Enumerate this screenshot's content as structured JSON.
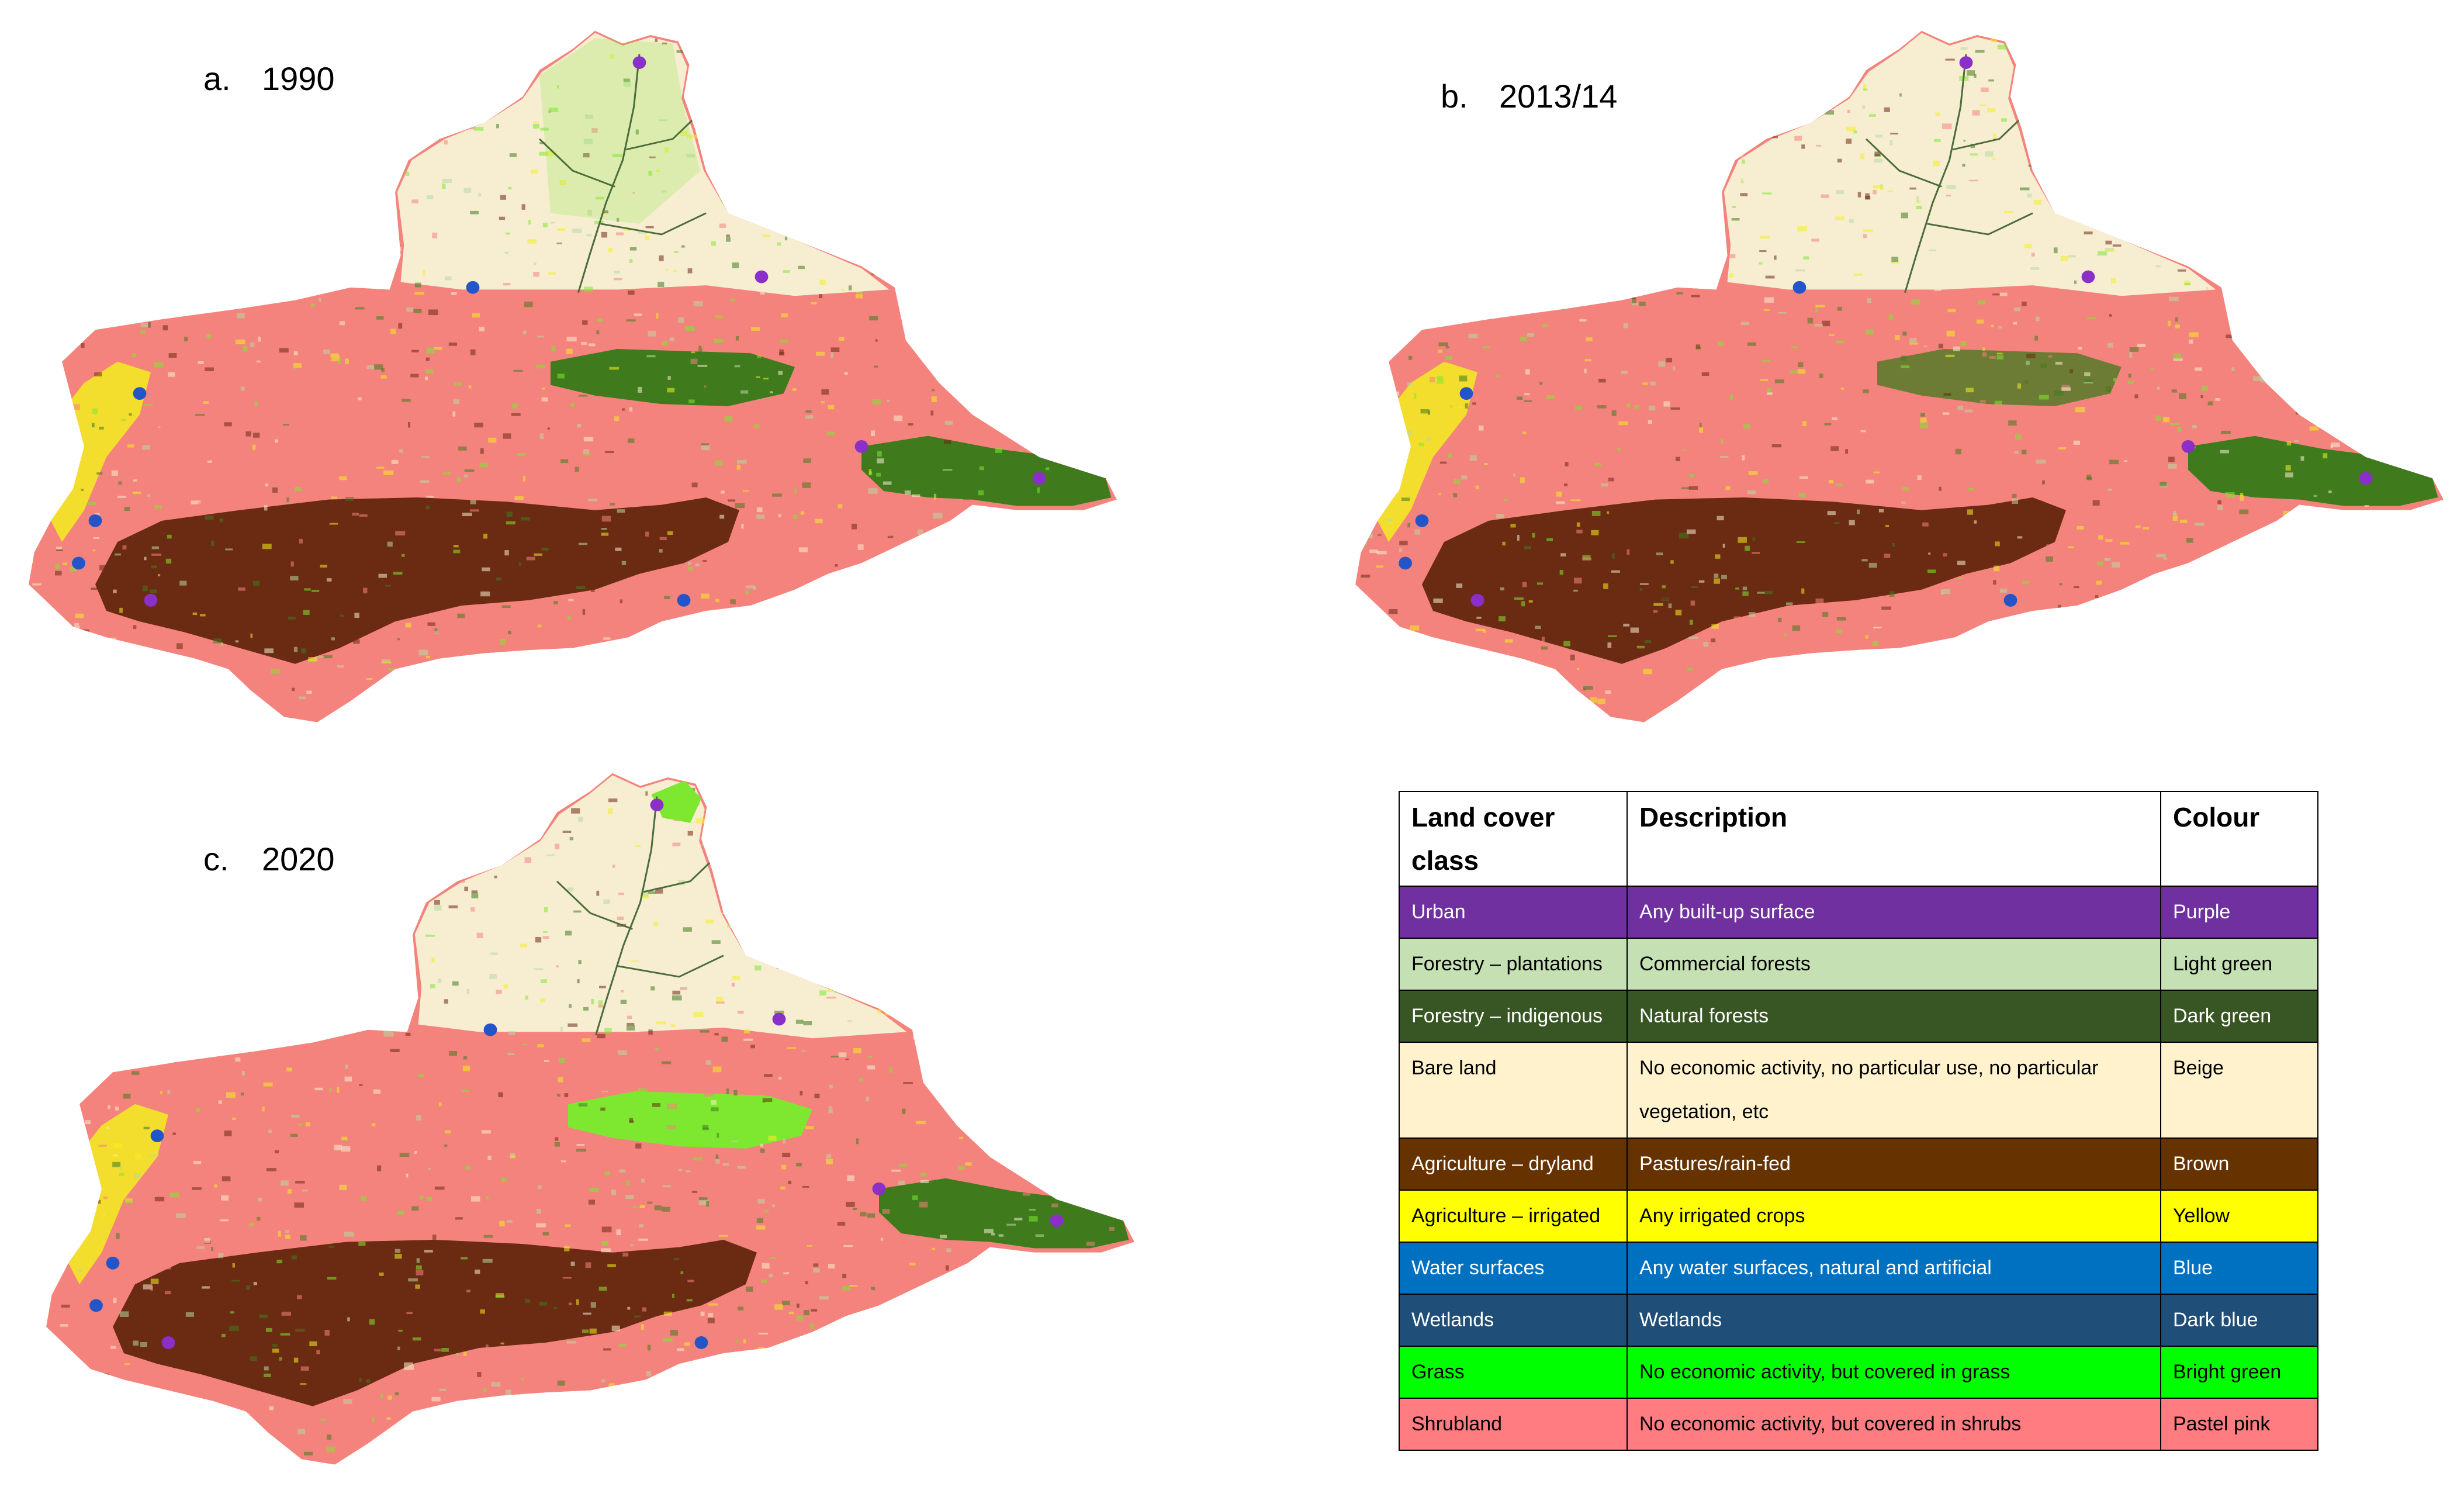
{
  "panels": [
    {
      "letter": "a.",
      "year": "1990"
    },
    {
      "letter": "b.",
      "year": "2013/14"
    },
    {
      "letter": "c.",
      "year": "2020"
    }
  ],
  "legend": {
    "headers": [
      "Land cover class",
      "Description",
      "Colour"
    ],
    "rows": [
      {
        "cls": "Urban",
        "desc": "Any built-up surface",
        "colour": "Purple",
        "fill": "#7030a0",
        "text": "#ffffff"
      },
      {
        "cls": "Forestry – plantations",
        "desc": "Commercial forests",
        "colour": "Light green",
        "fill": "#c5e0b3",
        "text": "#000000"
      },
      {
        "cls": "Forestry – indigenous",
        "desc": "Natural forests",
        "colour": "Dark green",
        "fill": "#375623",
        "text": "#ffffff"
      },
      {
        "cls": "Bare land",
        "desc": "No economic activity, no particular use, no particular vegetation, etc",
        "colour": "Beige",
        "fill": "#fff2cc",
        "text": "#000000"
      },
      {
        "cls": "Agriculture – dryland",
        "desc": "Pastures/rain-fed",
        "colour": "Brown",
        "fill": "#663300",
        "text": "#ffffff"
      },
      {
        "cls": "Agriculture – irrigated",
        "desc": "Any irrigated crops",
        "colour": "Yellow",
        "fill": "#ffff00",
        "text": "#000000"
      },
      {
        "cls": "Water surfaces",
        "desc": "Any water surfaces, natural and artificial",
        "colour": "Blue",
        "fill": "#0070c0",
        "text": "#ffffff"
      },
      {
        "cls": "Wetlands",
        "desc": "Wetlands",
        "colour": "Dark blue",
        "fill": "#1f4e79",
        "text": "#ffffff"
      },
      {
        "cls": "Grass",
        "desc": "No economic activity, but covered in grass",
        "colour": "Bright green",
        "fill": "#00ff00",
        "text": "#000000"
      },
      {
        "cls": "Shrubland",
        "desc": "No economic activity, but covered in shrubs",
        "colour": "Pastel pink",
        "fill": "#ff7c80",
        "text": "#000000"
      }
    ]
  },
  "map_colors": {
    "shrubland": "#f4837d",
    "bare": "#f7eed2",
    "dryland": "#6b2a12",
    "indigenous": "#3f7a1d",
    "grass": "#7ee830",
    "irrigated": "#f2ee20",
    "water": "#2455c8",
    "urban": "#8b2fc9",
    "plantation": "#b6d9a0",
    "river": "#4c6d3a"
  }
}
